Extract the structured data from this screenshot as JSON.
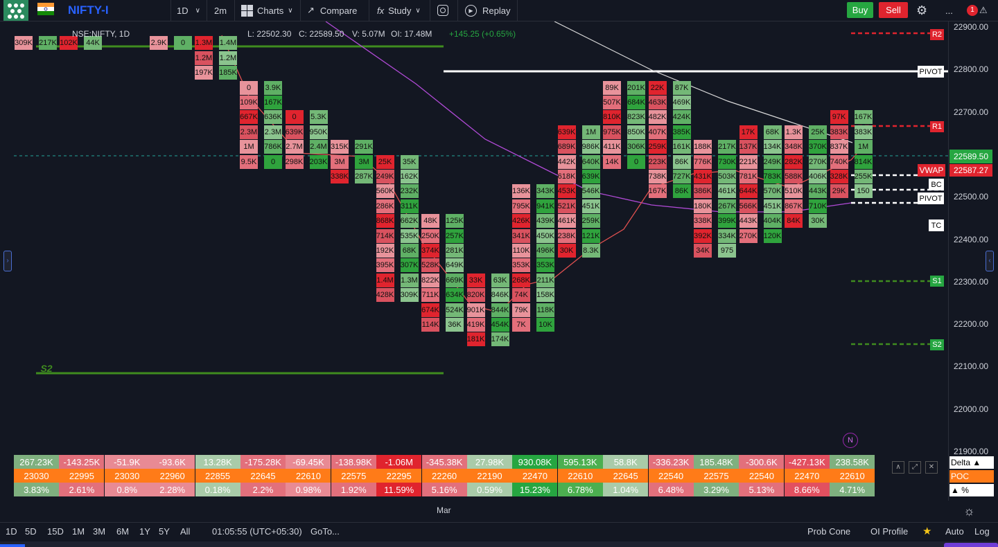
{
  "toolbar": {
    "symbol": "NIFTY-I",
    "interval": "1D",
    "timeframe": "2m",
    "charts_label": "Charts",
    "compare_label": "Compare",
    "study_label": "Study",
    "replay_label": "Replay",
    "buy_label": "Buy",
    "sell_label": "Sell",
    "more_label": "...",
    "notification_count": "1"
  },
  "legend": {
    "symbol_desc": "NSE:NIFTY, 1D",
    "low": "L: 22502.30",
    "close": "C: 22589.50",
    "volume": "V: 5.07M",
    "oi": "OI: 17.48M",
    "change": "+145.25  (+0.65%)"
  },
  "price_axis": {
    "ticks": [
      "22900.00",
      "22800.00",
      "22700.00",
      "22600.00",
      "22500.00",
      "22400.00",
      "22300.00",
      "22200.00",
      "22100.00",
      "22000.00",
      "21900.00"
    ],
    "current_price": "22589.50",
    "vwap_label": "VWAP",
    "vwap_price": "22587.27"
  },
  "level_tags": {
    "r2": "R2",
    "pivot": "PIVOT",
    "r1": "R1",
    "bc": "BC",
    "pivot2": "PIVOT",
    "tc": "TC",
    "s1": "S1",
    "s2": "S2",
    "s2_left": "S2",
    "news": "N"
  },
  "x_axis": {
    "label": "Mar"
  },
  "summary": {
    "delta": [
      "267.23K",
      "-143.25K",
      "-51.9K",
      "-93.6K",
      "13.28K",
      "-175.28K",
      "-69.45K",
      "-138.98K",
      "-1.06M",
      "-345.38K",
      "27.98K",
      "930.08K",
      "595.13K",
      "58.8K",
      "-336.23K",
      "185.48K",
      "-300.6K",
      "-427.13K",
      "238.58K"
    ],
    "poc": [
      "23030",
      "22995",
      "23030",
      "22960",
      "22855",
      "22645",
      "22610",
      "22575",
      "22295",
      "22260",
      "22190",
      "22470",
      "22610",
      "22645",
      "22540",
      "22575",
      "22540",
      "22470",
      "22610"
    ],
    "pct": [
      "3.83%",
      "2.61%",
      "0.8%",
      "2.28%",
      "0.18%",
      "2.2%",
      "0.98%",
      "1.92%",
      "11.59%",
      "5.16%",
      "0.59%",
      "15.23%",
      "6.78%",
      "1.04%",
      "6.48%",
      "3.29%",
      "5.13%",
      "8.66%",
      "4.71%"
    ],
    "delta_colors": [
      "#7fb07f",
      "#e2707c",
      "#e88a94",
      "#e88a94",
      "#a9cba9",
      "#e2707c",
      "#e88a94",
      "#e2707c",
      "#e0242e",
      "#e2707c",
      "#a9cba9",
      "#26a641",
      "#4caf50",
      "#a9cba9",
      "#e2707c",
      "#7fb07f",
      "#e2707c",
      "#e25060",
      "#7fb07f"
    ],
    "labels": {
      "delta": "Delta ▲",
      "poc": "POC",
      "pct": "▲ %"
    }
  },
  "columns": [
    {
      "side": "red",
      "cells": [
        "309K"
      ]
    },
    {
      "side": "green",
      "cells": [
        "217K"
      ]
    },
    {
      "side": "red",
      "cells": [
        "102K"
      ]
    },
    {
      "side": "green",
      "cells": [
        "44K"
      ]
    },
    {
      "side": "red",
      "cells": [
        "2.9K"
      ]
    },
    {
      "side": "green",
      "cells": [
        "0"
      ]
    },
    {
      "side": "red",
      "cells": [
        "1.3M",
        "1.2M",
        "197K"
      ]
    },
    {
      "side": "green",
      "cells": [
        "1.4M",
        "1.2M",
        "185K"
      ]
    },
    {
      "side": "red",
      "cells": [
        "0",
        "109K",
        "667K",
        "2.3M",
        "1M",
        "9.5K"
      ]
    },
    {
      "side": "green",
      "cells": [
        "3.9K",
        "167K",
        "636K",
        "2.3M",
        "786K",
        "0"
      ]
    },
    {
      "side": "red",
      "cells": [
        "0",
        "639K",
        "2.7M",
        "298K"
      ]
    },
    {
      "side": "green",
      "cells": [
        "5.3K",
        "950K",
        "2.4M",
        "203K"
      ]
    },
    {
      "side": "red",
      "cells": [
        "315K",
        "3M",
        "338K"
      ]
    },
    {
      "side": "green",
      "cells": [
        "291K",
        "3M",
        "287K"
      ]
    },
    {
      "side": "red",
      "cells": [
        "25K",
        "249K",
        "560K",
        "286K",
        "868K",
        "714K",
        "192K",
        "395K",
        "1.4M",
        "428K"
      ]
    },
    {
      "side": "green",
      "cells": [
        "35K",
        "162K",
        "232K",
        "311K",
        "662K",
        "535K",
        "68K",
        "307K",
        "1.3M",
        "309K"
      ]
    },
    {
      "side": "red",
      "cells": [
        "48K",
        "250K",
        "374K",
        "528K",
        "822K",
        "711K",
        "674K",
        "114K"
      ]
    },
    {
      "side": "green",
      "cells": [
        "125K",
        "257K",
        "281K",
        "649K",
        "669K",
        "634K",
        "524K",
        "36K"
      ]
    },
    {
      "side": "red",
      "cells": [
        "33K",
        "820K",
        "901K",
        "419K",
        "181K"
      ]
    },
    {
      "side": "green",
      "cells": [
        "63K",
        "846K",
        "844K",
        "454K",
        "174K"
      ]
    },
    {
      "side": "red",
      "cells": [
        "136K",
        "795K",
        "426K",
        "341K",
        "110K",
        "353K",
        "268K",
        "74K",
        "79K",
        "7K"
      ]
    },
    {
      "side": "green",
      "cells": [
        "343K",
        "941K",
        "439K",
        "450K",
        "496K",
        "353K",
        "211K",
        "158K",
        "118K",
        "10K"
      ]
    },
    {
      "side": "red",
      "cells": [
        "639K",
        "689K",
        "442K",
        "618K",
        "453K",
        "521K",
        "461K",
        "238K",
        "30K"
      ]
    },
    {
      "side": "green",
      "cells": [
        "1M",
        "986K",
        "640K",
        "639K",
        "546K",
        "451K",
        "259K",
        "121K",
        "8.3K"
      ]
    },
    {
      "side": "red",
      "cells": [
        "89K",
        "507K",
        "810K",
        "975K",
        "411K",
        "14K"
      ]
    },
    {
      "side": "green",
      "cells": [
        "201K",
        "684K",
        "823K",
        "850K",
        "306K",
        "0"
      ]
    },
    {
      "side": "red",
      "cells": [
        "22K",
        "463K",
        "482K",
        "407K",
        "259K",
        "223K",
        "738K",
        "167K"
      ]
    },
    {
      "side": "green",
      "cells": [
        "87K",
        "469K",
        "424K",
        "385K",
        "161K",
        "86K",
        "727K",
        "86K"
      ]
    },
    {
      "side": "red",
      "cells": [
        "188K",
        "776K",
        "431K",
        "386K",
        "180K",
        "338K",
        "392K",
        "34K"
      ]
    },
    {
      "side": "green",
      "cells": [
        "217K",
        "730K",
        "503K",
        "461K",
        "267K",
        "399K",
        "334K",
        "975"
      ]
    },
    {
      "side": "red",
      "cells": [
        "17K",
        "137K",
        "221K",
        "781K",
        "644K",
        "566K",
        "443K",
        "270K"
      ]
    },
    {
      "side": "green",
      "cells": [
        "68K",
        "134K",
        "249K",
        "783K",
        "570K",
        "451K",
        "404K",
        "120K"
      ]
    },
    {
      "side": "red",
      "cells": [
        "1.3K",
        "348K",
        "282K",
        "588K",
        "510K",
        "867K",
        "84K"
      ]
    },
    {
      "side": "green",
      "cells": [
        "25K",
        "370K",
        "270K",
        "406K",
        "443K",
        "710K",
        "30K"
      ]
    },
    {
      "side": "red",
      "cells": [
        "97K",
        "383K",
        "837K",
        "740K",
        "328K",
        "29K"
      ]
    },
    {
      "side": "green",
      "cells": [
        "167K",
        "383K",
        "1M",
        "814K",
        "255K",
        "150"
      ]
    }
  ],
  "bottom_bar": {
    "ranges": [
      "1D",
      "5D",
      "15D",
      "1M",
      "3M",
      "6M",
      "1Y",
      "5Y",
      "All"
    ],
    "clock": "01:05:55 (UTC+05:30)",
    "goto": "GoTo...",
    "prob_cone": "Prob Cone",
    "oi_profile": "OI Profile",
    "auto": "Auto",
    "log": "Log"
  }
}
